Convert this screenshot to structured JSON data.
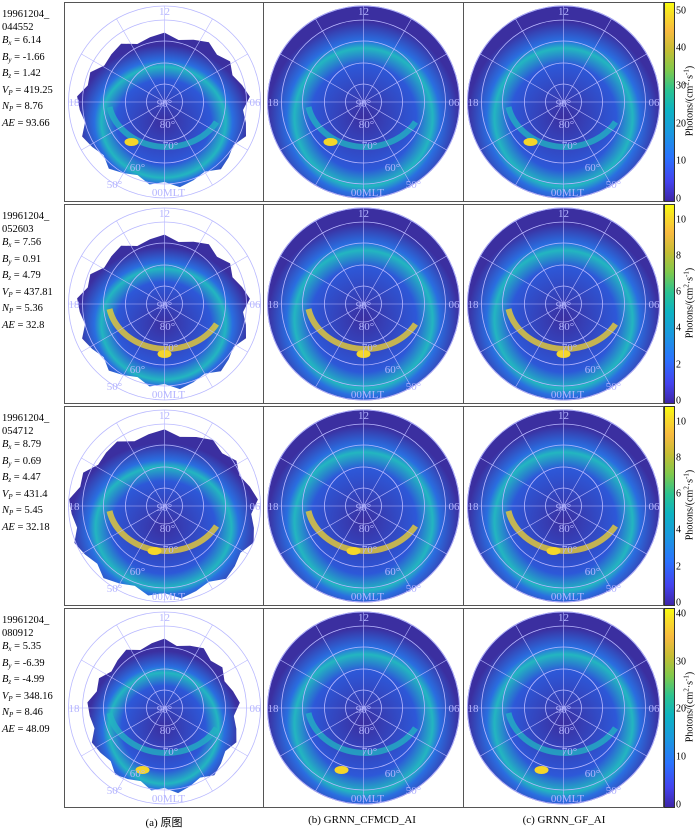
{
  "rows": [
    {
      "id": "19961204_044552",
      "params": [
        {
          "sym": "B",
          "sub": "x",
          "val": "6.14"
        },
        {
          "sym": "B",
          "sub": "y",
          "val": "-1.66"
        },
        {
          "sym": "B",
          "sub": "z",
          "val": "1.42"
        },
        {
          "sym": "V",
          "sub": "P",
          "val": "419.25"
        },
        {
          "sym": "N",
          "sub": "P",
          "val": "8.76"
        },
        {
          "sym": "AE",
          "sub": "",
          "val": "93.66"
        }
      ],
      "colorbar_ticks": [
        "50",
        "40",
        "30",
        "20",
        "10",
        "0"
      ],
      "colorbar_max": 52
    },
    {
      "id": "19961204_052603",
      "params": [
        {
          "sym": "B",
          "sub": "x",
          "val": "7.56"
        },
        {
          "sym": "B",
          "sub": "y",
          "val": "0.91"
        },
        {
          "sym": "B",
          "sub": "z",
          "val": "4.79"
        },
        {
          "sym": "V",
          "sub": "P",
          "val": "437.81"
        },
        {
          "sym": "N",
          "sub": "P",
          "val": "5.36"
        },
        {
          "sym": "AE",
          "sub": "",
          "val": "32.8"
        }
      ],
      "colorbar_ticks": [
        "10",
        "8",
        "6",
        "4",
        "2",
        "0"
      ],
      "colorbar_max": 10.8
    },
    {
      "id": "19961204_054712",
      "params": [
        {
          "sym": "B",
          "sub": "x",
          "val": "8.79"
        },
        {
          "sym": "B",
          "sub": "y",
          "val": "0.69"
        },
        {
          "sym": "B",
          "sub": "z",
          "val": "4.47"
        },
        {
          "sym": "V",
          "sub": "P",
          "val": "431.4"
        },
        {
          "sym": "N",
          "sub": "P",
          "val": "5.45"
        },
        {
          "sym": "AE",
          "sub": "",
          "val": "32.18"
        }
      ],
      "colorbar_ticks": [
        "10",
        "8",
        "6",
        "4",
        "2",
        "0"
      ],
      "colorbar_max": 10.8
    },
    {
      "id": "19961204_080912",
      "params": [
        {
          "sym": "B",
          "sub": "x",
          "val": "5.35"
        },
        {
          "sym": "B",
          "sub": "y",
          "val": "-6.39"
        },
        {
          "sym": "B",
          "sub": "z",
          "val": "-4.99"
        },
        {
          "sym": "V",
          "sub": "P",
          "val": "348.16"
        },
        {
          "sym": "N",
          "sub": "P",
          "val": "8.46"
        },
        {
          "sym": "AE",
          "sub": "",
          "val": "48.09"
        }
      ],
      "colorbar_ticks": [
        "40",
        "30",
        "20",
        "10",
        "0"
      ],
      "colorbar_max": 41
    }
  ],
  "polar_labels": {
    "top": "12",
    "left": "18",
    "right": "06",
    "bottom": "00MLT",
    "lat90": "90°",
    "lat80": "80°",
    "lat70": "70°",
    "lat60": "60°",
    "lat50": "50°"
  },
  "colorbar_unit": "Photons/(cm",
  "colorbar_unit_tail": "s",
  "colors": {
    "background_disk": "#3b2fa0",
    "grid": "#b8b8ff",
    "label": "#b4b4ff",
    "oval": "#23b6c0",
    "peak": "#f5d62a"
  },
  "captions": {
    "a": "(a) 原图",
    "b": "(b) GRNN_CFMCD_AI",
    "c": "(c) GRNN_GF_AI"
  }
}
